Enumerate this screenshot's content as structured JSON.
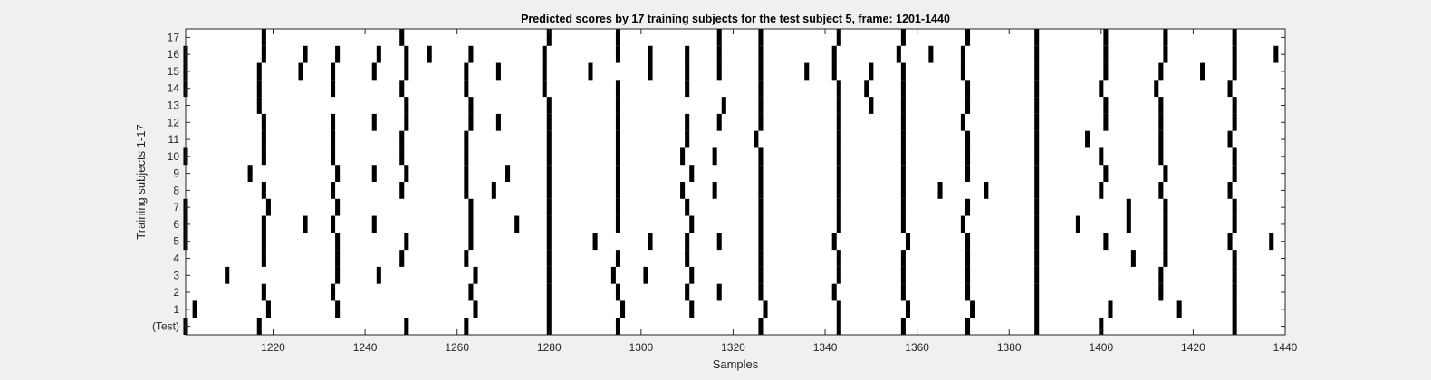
{
  "chart_data": {
    "type": "heatmap",
    "title": "Predicted scores by 17 training subjects for the test subject 5, frame: 1201-1440",
    "xlabel": "Samples",
    "ylabel": "Training subjects 1-17",
    "xlim": [
      1201,
      1440
    ],
    "x_ticks": [
      1220,
      1240,
      1260,
      1280,
      1300,
      1320,
      1340,
      1360,
      1380,
      1400,
      1420,
      1440
    ],
    "row_labels": [
      "(Test)",
      "1",
      "2",
      "3",
      "4",
      "5",
      "6",
      "7",
      "8",
      "9",
      "10",
      "11",
      "12",
      "13",
      "14",
      "15",
      "16",
      "17"
    ],
    "grid": false,
    "background_color": "#ffffff",
    "mark_color": "#000000",
    "rows": [
      {
        "label": "(Test)",
        "events": [
          1201,
          1217,
          1249,
          1262,
          1280,
          1295,
          1326,
          1343,
          1357,
          1371,
          1386,
          1400,
          1429
        ]
      },
      {
        "label": "1",
        "events": [
          1203,
          1219,
          1234,
          1264,
          1280,
          1296,
          1311,
          1327,
          1343,
          1358,
          1372,
          1386,
          1402,
          1417,
          1429
        ]
      },
      {
        "label": "2",
        "events": [
          1218,
          1233,
          1263,
          1280,
          1295,
          1310,
          1317,
          1326,
          1342,
          1357,
          1371,
          1386,
          1413,
          1429
        ]
      },
      {
        "label": "3",
        "events": [
          1210,
          1234,
          1243,
          1264,
          1280,
          1294,
          1301,
          1311,
          1326,
          1343,
          1357,
          1371,
          1386,
          1413,
          1429
        ]
      },
      {
        "label": "4",
        "events": [
          1218,
          1234,
          1248,
          1262,
          1280,
          1295,
          1310,
          1326,
          1343,
          1357,
          1371,
          1386,
          1407,
          1414,
          1429
        ]
      },
      {
        "label": "5",
        "events": [
          1201,
          1218,
          1234,
          1249,
          1263,
          1280,
          1290,
          1302,
          1310,
          1317,
          1326,
          1342,
          1358,
          1371,
          1386,
          1401,
          1414,
          1428,
          1437
        ]
      },
      {
        "label": "6",
        "events": [
          1201,
          1218,
          1227,
          1233,
          1242,
          1263,
          1273,
          1280,
          1295,
          1311,
          1326,
          1343,
          1357,
          1370,
          1386,
          1395,
          1406,
          1414,
          1429
        ]
      },
      {
        "label": "7",
        "events": [
          1201,
          1219,
          1234,
          1263,
          1280,
          1295,
          1310,
          1326,
          1343,
          1357,
          1371,
          1386,
          1406,
          1414,
          1429
        ]
      },
      {
        "label": "8",
        "events": [
          1218,
          1233,
          1248,
          1262,
          1268,
          1280,
          1295,
          1309,
          1316,
          1326,
          1343,
          1357,
          1365,
          1375,
          1386,
          1400,
          1413,
          1428
        ]
      },
      {
        "label": "9",
        "events": [
          1215,
          1234,
          1242,
          1249,
          1262,
          1271,
          1280,
          1295,
          1311,
          1326,
          1343,
          1357,
          1371,
          1386,
          1401,
          1414,
          1429
        ]
      },
      {
        "label": "10",
        "events": [
          1201,
          1218,
          1233,
          1248,
          1262,
          1280,
          1295,
          1309,
          1316,
          1326,
          1343,
          1357,
          1371,
          1386,
          1400,
          1413,
          1429
        ]
      },
      {
        "label": "11",
        "events": [
          1218,
          1233,
          1248,
          1262,
          1280,
          1295,
          1310,
          1325,
          1343,
          1357,
          1371,
          1386,
          1397,
          1413,
          1428
        ]
      },
      {
        "label": "12",
        "events": [
          1218,
          1233,
          1242,
          1249,
          1263,
          1269,
          1280,
          1295,
          1310,
          1317,
          1326,
          1343,
          1357,
          1370,
          1386,
          1401,
          1413,
          1429
        ]
      },
      {
        "label": "13",
        "events": [
          1217,
          1249,
          1263,
          1280,
          1295,
          1318,
          1326,
          1343,
          1350,
          1357,
          1371,
          1386,
          1401,
          1413,
          1429
        ]
      },
      {
        "label": "14",
        "events": [
          1201,
          1217,
          1233,
          1248,
          1262,
          1279,
          1295,
          1310,
          1326,
          1343,
          1349,
          1357,
          1371,
          1386,
          1400,
          1412,
          1428
        ]
      },
      {
        "label": "15",
        "events": [
          1201,
          1217,
          1226,
          1233,
          1242,
          1249,
          1262,
          1269,
          1279,
          1289,
          1302,
          1310,
          1317,
          1326,
          1336,
          1342,
          1350,
          1357,
          1370,
          1386,
          1401,
          1413,
          1422,
          1429
        ]
      },
      {
        "label": "16",
        "events": [
          1201,
          1218,
          1227,
          1234,
          1243,
          1249,
          1254,
          1263,
          1279,
          1295,
          1302,
          1310,
          1317,
          1326,
          1342,
          1356,
          1363,
          1370,
          1386,
          1401,
          1414,
          1429,
          1438
        ]
      },
      {
        "label": "17",
        "events": [
          1218,
          1248,
          1280,
          1295,
          1317,
          1326,
          1343,
          1357,
          1371,
          1386,
          1401,
          1414,
          1429
        ]
      }
    ]
  }
}
